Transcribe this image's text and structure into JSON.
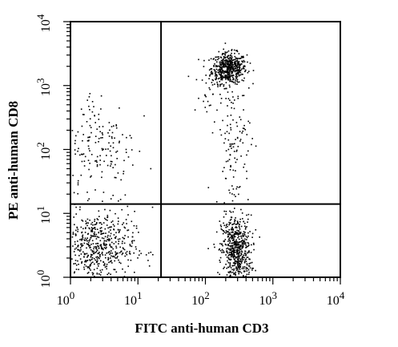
{
  "chart_data": {
    "type": "scatter",
    "title": "",
    "xlabel": "FITC anti-human CD3",
    "ylabel": "PE anti-human CD8",
    "x_scale": "log",
    "y_scale": "log",
    "xlim": [
      1,
      10000
    ],
    "ylim": [
      1,
      10000
    ],
    "x_ticks": [
      {
        "value": 1,
        "base": "10",
        "exp": "0"
      },
      {
        "value": 10,
        "base": "10",
        "exp": "1"
      },
      {
        "value": 100,
        "base": "10",
        "exp": "2"
      },
      {
        "value": 1000,
        "base": "10",
        "exp": "3"
      },
      {
        "value": 10000,
        "base": "10",
        "exp": "4"
      }
    ],
    "y_ticks": [
      {
        "value": 1,
        "base": "10",
        "exp": "0"
      },
      {
        "value": 10,
        "base": "10",
        "exp": "1"
      },
      {
        "value": 100,
        "base": "10",
        "exp": "2"
      },
      {
        "value": 1000,
        "base": "10",
        "exp": "3"
      },
      {
        "value": 10000,
        "base": "10",
        "exp": "4"
      }
    ],
    "gates": {
      "x": 22,
      "y": 14
    },
    "grid": false,
    "legend": "none",
    "point_color": "#000000",
    "populations": [
      {
        "x_center": 220,
        "y_center": 1900,
        "x_spread_decades": 0.13,
        "y_spread_decades": 0.12,
        "count": 520
      },
      {
        "x_center": 280,
        "y_center": 2.6,
        "x_spread_decades": 0.11,
        "y_spread_decades": 0.28,
        "count": 620
      },
      {
        "x_center": 2.4,
        "y_center": 3.0,
        "x_spread_decades": 0.28,
        "y_spread_decades": 0.28,
        "count": 560
      },
      {
        "x_center": 2.6,
        "y_center": 120,
        "x_spread_decades": 0.28,
        "y_spread_decades": 0.45,
        "count": 170
      },
      {
        "x_center": 250,
        "y_center": 120,
        "x_spread_decades": 0.13,
        "y_spread_decades": 0.5,
        "count": 110
      },
      {
        "x_center": 150,
        "y_center": 700,
        "x_spread_decades": 0.18,
        "y_spread_decades": 0.2,
        "count": 45
      }
    ]
  }
}
